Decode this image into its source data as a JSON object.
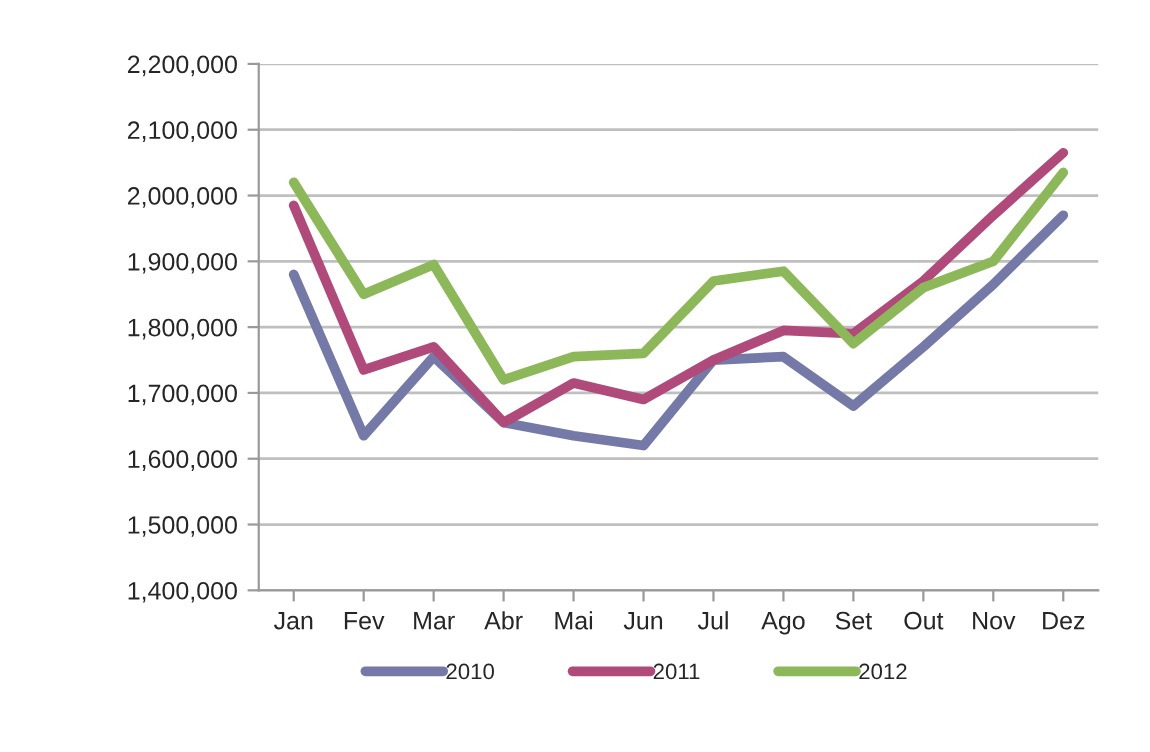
{
  "chart_data": {
    "type": "line",
    "categories": [
      "Jan",
      "Fev",
      "Mar",
      "Abr",
      "Mai",
      "Jun",
      "Jul",
      "Ago",
      "Set",
      "Out",
      "Nov",
      "Dez"
    ],
    "series": [
      {
        "name": "2010",
        "color": "#7579a8",
        "values": [
          1880000,
          1635000,
          1755000,
          1655000,
          1635000,
          1620000,
          1750000,
          1755000,
          1680000,
          1770000,
          1865000,
          1970000
        ]
      },
      {
        "name": "2011",
        "color": "#b04a7a",
        "values": [
          1985000,
          1735000,
          1770000,
          1655000,
          1715000,
          1690000,
          1750000,
          1795000,
          1790000,
          1870000,
          1970000,
          2065000
        ]
      },
      {
        "name": "2012",
        "color": "#8db85a",
        "values": [
          2020000,
          1850000,
          1895000,
          1720000,
          1755000,
          1760000,
          1870000,
          1885000,
          1775000,
          1860000,
          1900000,
          2035000
        ]
      }
    ],
    "ylim": [
      1400000,
      2200000
    ],
    "yticks": [
      {
        "value": 1400000,
        "label": "1,400,000"
      },
      {
        "value": 1500000,
        "label": "1,500,000"
      },
      {
        "value": 1600000,
        "label": "1,600,000"
      },
      {
        "value": 1700000,
        "label": "1,700,000"
      },
      {
        "value": 1800000,
        "label": "1,800,000"
      },
      {
        "value": 1900000,
        "label": "1,900,000"
      },
      {
        "value": 2000000,
        "label": "2,000,000"
      },
      {
        "value": 2100000,
        "label": "2,100,000"
      },
      {
        "value": 2200000,
        "label": "2,200,000"
      }
    ],
    "grid": "y",
    "legend": "bottom",
    "marker": "none",
    "line_style": "solid"
  }
}
